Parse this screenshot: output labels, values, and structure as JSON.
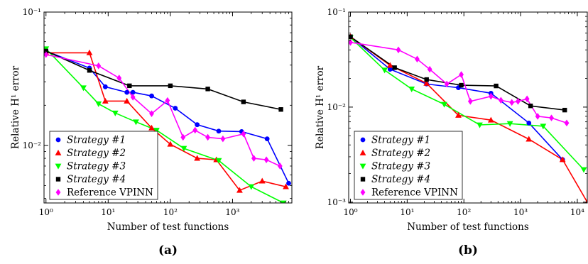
{
  "chart_data": [
    {
      "type": "line",
      "panel_label": "(a)",
      "xlabel": "Number of test functions",
      "ylabel": "Relative H¹ error",
      "xscale": "log",
      "yscale": "log",
      "xlim": [
        0.93,
        9000
      ],
      "ylim": [
        0.0037,
        0.1
      ],
      "xticks": [
        {
          "v": 1,
          "label": "10⁰"
        },
        {
          "v": 10,
          "label": "10¹"
        },
        {
          "v": 100,
          "label": "10²"
        },
        {
          "v": 1000,
          "label": "10³"
        }
      ],
      "yticks": [
        {
          "v": 0.01,
          "label": "10⁻²"
        },
        {
          "v": 0.1,
          "label": "10⁻¹"
        }
      ],
      "grid": false,
      "legend_position": "bottom-left",
      "series": [
        {
          "name": "Strategy #1",
          "color": "#0000ff",
          "marker": "circle",
          "x": [
            1,
            5,
            9,
            20,
            25,
            50,
            120,
            270,
            600,
            1400,
            3600,
            8000
          ],
          "y": [
            0.051,
            0.038,
            0.0275,
            0.025,
            0.025,
            0.0235,
            0.019,
            0.0143,
            0.0128,
            0.0127,
            0.0112,
            0.0052
          ]
        },
        {
          "name": "Strategy #2",
          "color": "#ff0000",
          "marker": "triangle-up",
          "x": [
            1,
            5,
            9,
            20,
            50,
            100,
            270,
            550,
            1300,
            3000,
            7200
          ],
          "y": [
            0.0495,
            0.0495,
            0.0215,
            0.0215,
            0.0135,
            0.0102,
            0.008,
            0.0078,
            0.0046,
            0.0054,
            0.0049
          ]
        },
        {
          "name": "Strategy #3",
          "color": "#00ff00",
          "marker": "triangle-down",
          "x": [
            1,
            4,
            7,
            13,
            28,
            60,
            165,
            600,
            2000,
            6600
          ],
          "y": [
            0.053,
            0.027,
            0.0205,
            0.0175,
            0.015,
            0.013,
            0.0095,
            0.0077,
            0.0049,
            0.0037
          ]
        },
        {
          "name": "Strategy #4",
          "color": "#000000",
          "marker": "square",
          "x": [
            1,
            5,
            22,
            100,
            400,
            1500,
            6000
          ],
          "y": [
            0.051,
            0.0365,
            0.028,
            0.028,
            0.0265,
            0.0212,
            0.0186
          ]
        },
        {
          "name": "Reference VPINN",
          "color": "#ff00ff",
          "marker": "diamond",
          "x": [
            1,
            7,
            15,
            25,
            50,
            90,
            160,
            250,
            400,
            700,
            1500,
            2200,
            3500,
            5800
          ],
          "y": [
            0.048,
            0.0395,
            0.032,
            0.023,
            0.0173,
            0.0217,
            0.0115,
            0.013,
            0.0115,
            0.0112,
            0.0122,
            0.008,
            0.0078,
            0.007
          ]
        }
      ]
    },
    {
      "type": "line",
      "panel_label": "(b)",
      "xlabel": "Number of test functions",
      "ylabel": "Relative H¹ error",
      "xscale": "log",
      "yscale": "log",
      "xlim": [
        0.93,
        15000
      ],
      "ylim": [
        0.00098,
        0.1
      ],
      "xticks": [
        {
          "v": 1,
          "label": "10⁰"
        },
        {
          "v": 10,
          "label": "10¹"
        },
        {
          "v": 100,
          "label": "10²"
        },
        {
          "v": 1000,
          "label": "10³"
        },
        {
          "v": 10000,
          "label": "10⁴"
        }
      ],
      "yticks": [
        {
          "v": 0.001,
          "label": "10⁻³"
        },
        {
          "v": 0.01,
          "label": "10⁻²"
        },
        {
          "v": 0.1,
          "label": "10⁻¹"
        }
      ],
      "grid": false,
      "legend_position": "bottom-left",
      "series": [
        {
          "name": "Strategy #1",
          "color": "#0000ff",
          "marker": "circle",
          "x": [
            1,
            5,
            22,
            80,
            300,
            1400,
            5500
          ],
          "y": [
            0.055,
            0.025,
            0.0175,
            0.016,
            0.014,
            0.0068,
            0.0028
          ]
        },
        {
          "name": "Strategy #2",
          "color": "#ff0000",
          "marker": "triangle-up",
          "x": [
            1,
            5,
            22,
            80,
            300,
            1400,
            5500,
            15000
          ],
          "y": [
            0.055,
            0.0275,
            0.0178,
            0.0082,
            0.0073,
            0.0046,
            0.0028,
            0.001
          ]
        },
        {
          "name": "Strategy #3",
          "color": "#00ff00",
          "marker": "triangle-down",
          "x": [
            1,
            4,
            12,
            45,
            190,
            650,
            2500,
            13000
          ],
          "y": [
            0.054,
            0.0245,
            0.0155,
            0.0107,
            0.0065,
            0.0067,
            0.0063,
            0.0022
          ]
        },
        {
          "name": "Strategy #4",
          "color": "#000000",
          "marker": "square",
          "x": [
            1,
            6,
            22,
            90,
            370,
            1500,
            6000
          ],
          "y": [
            0.055,
            0.026,
            0.0195,
            0.017,
            0.0167,
            0.0103,
            0.0093
          ]
        },
        {
          "name": "Reference VPINN",
          "color": "#ff00ff",
          "marker": "diamond",
          "x": [
            1,
            7,
            15,
            25,
            50,
            90,
            130,
            300,
            450,
            700,
            900,
            1300,
            2000,
            3500,
            6500
          ],
          "y": [
            0.048,
            0.04,
            0.032,
            0.025,
            0.0175,
            0.022,
            0.0115,
            0.013,
            0.0118,
            0.0112,
            0.0115,
            0.0122,
            0.008,
            0.0077,
            0.0068
          ]
        }
      ]
    }
  ]
}
